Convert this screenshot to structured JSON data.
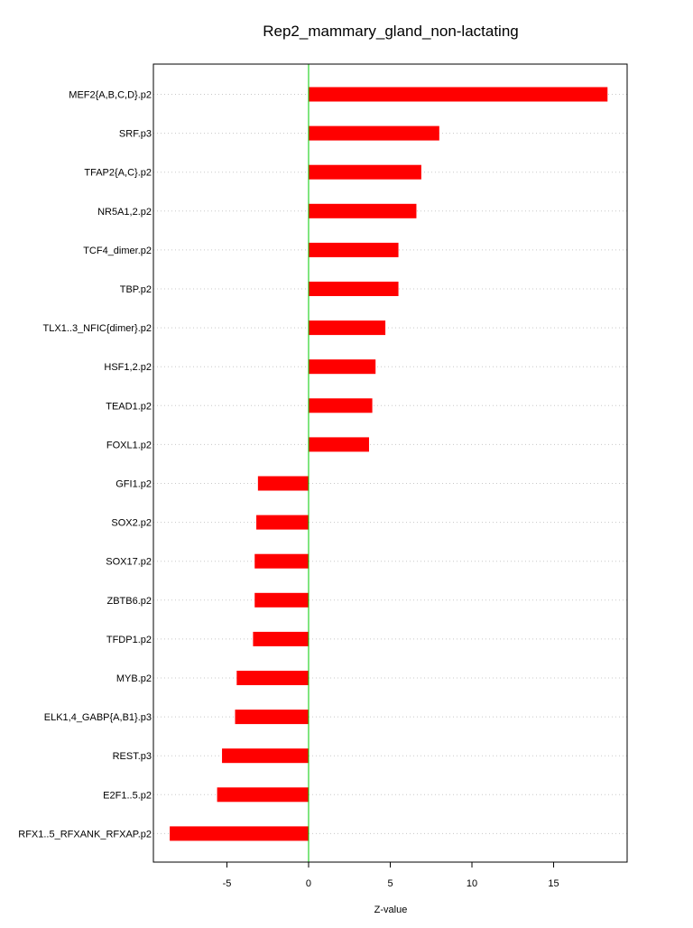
{
  "chart_data": {
    "type": "bar",
    "orientation": "horizontal",
    "title": "Rep2_mammary_gland_non-lactating",
    "xlabel": "Z-value",
    "ylabel": "",
    "xlim": [
      -9.5,
      19.5
    ],
    "xticks": [
      -5,
      0,
      5,
      10,
      15
    ],
    "zero_line_color": "#00cc00",
    "bar_color": "#ff0000",
    "grid": "horizontal dotted",
    "categories": [
      "MEF2{A,B,C,D}.p2",
      "SRF.p3",
      "TFAP2{A,C}.p2",
      "NR5A1,2.p2",
      "TCF4_dimer.p2",
      "TBP.p2",
      "TLX1..3_NFIC{dimer}.p2",
      "HSF1,2.p2",
      "TEAD1.p2",
      "FOXL1.p2",
      "GFI1.p2",
      "SOX2.p2",
      "SOX17.p2",
      "ZBTB6.p2",
      "TFDP1.p2",
      "MYB.p2",
      "ELK1,4_GABP{A,B1}.p3",
      "REST.p3",
      "E2F1..5.p2",
      "RFX1..5_RFXANK_RFXAP.p2"
    ],
    "values": [
      18.3,
      8.0,
      6.9,
      6.6,
      5.5,
      5.5,
      4.7,
      4.1,
      3.9,
      3.7,
      -3.1,
      -3.2,
      -3.3,
      -3.3,
      -3.4,
      -4.4,
      -4.5,
      -5.3,
      -5.6,
      -8.5
    ]
  }
}
